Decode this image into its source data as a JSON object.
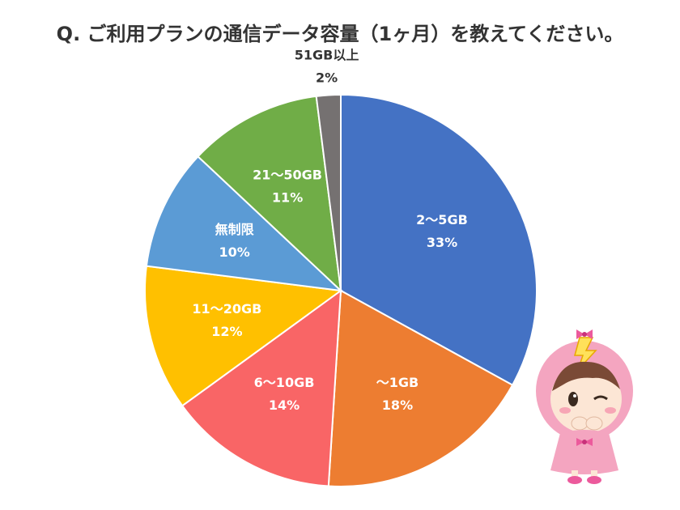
{
  "chart_data": {
    "type": "pie",
    "title": "Q. ご利用プランの通信データ容量（1ヶ月）を教えてください。",
    "start_angle_deg": 0,
    "direction": "clockwise",
    "slices": [
      {
        "label": "2〜5GB",
        "value": 33,
        "value_label": "33%",
        "color": "#4472C4",
        "label_color": "#ffffff"
      },
      {
        "label": "〜1GB",
        "value": 18,
        "value_label": "18%",
        "color": "#ED7D31",
        "label_color": "#ffffff"
      },
      {
        "label": "6〜10GB",
        "value": 14,
        "value_label": "14%",
        "color": "#F96566",
        "label_color": "#ffffff"
      },
      {
        "label": "11〜20GB",
        "value": 12,
        "value_label": "12%",
        "color": "#FFC000",
        "label_color": "#ffffff"
      },
      {
        "label": "無制限",
        "value": 10,
        "value_label": "10%",
        "color": "#5B9BD5",
        "label_color": "#ffffff"
      },
      {
        "label": "21〜50GB",
        "value": 11,
        "value_label": "11%",
        "color": "#70AD47",
        "label_color": "#ffffff"
      },
      {
        "label": "51GB以上",
        "value": 2,
        "value_label": "2%",
        "color": "#757171",
        "label_color": "#333333",
        "label_outside": true
      }
    ]
  }
}
